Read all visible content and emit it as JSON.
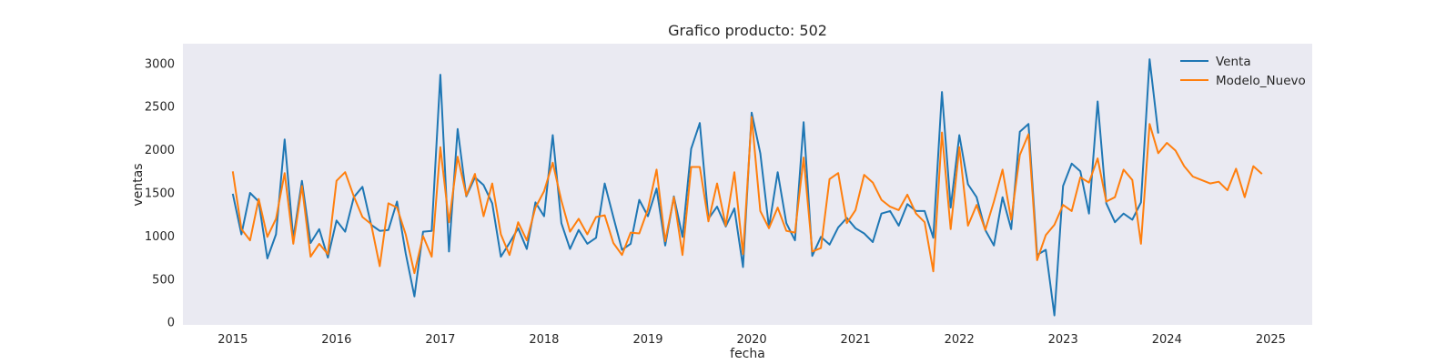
{
  "chart_data": {
    "type": "line",
    "title": "Grafico producto: 502",
    "xlabel": "fecha",
    "ylabel": "ventas",
    "xlim": [
      2014.52,
      2025.4
    ],
    "ylim": [
      -30,
      3230
    ],
    "xticks": [
      2015,
      2016,
      2017,
      2018,
      2019,
      2020,
      2021,
      2022,
      2023,
      2024,
      2025
    ],
    "xtick_labels": [
      "2015",
      "2016",
      "2017",
      "2018",
      "2019",
      "2020",
      "2021",
      "2022",
      "2023",
      "2024",
      "2025"
    ],
    "yticks": [
      0,
      500,
      1000,
      1500,
      2000,
      2500,
      3000
    ],
    "ytick_labels": [
      "0",
      "500",
      "1000",
      "1500",
      "2000",
      "2500",
      "3000"
    ],
    "grid": false,
    "background": "#eaeaf2",
    "legend_position": "top-right",
    "x_start": 2015.0,
    "x_step": 0.08333,
    "series": [
      {
        "name": "Venta",
        "color": "#1f77b4",
        "values": [
          1490,
          1020,
          1500,
          1400,
          740,
          1020,
          2120,
          970,
          1640,
          920,
          1080,
          750,
          1180,
          1050,
          1450,
          1570,
          1130,
          1060,
          1070,
          1400,
          800,
          300,
          1050,
          1060,
          2870,
          820,
          2240,
          1460,
          1680,
          1590,
          1380,
          760,
          920,
          1090,
          850,
          1390,
          1230,
          2170,
          1150,
          850,
          1070,
          910,
          980,
          1610,
          1220,
          840,
          910,
          1420,
          1230,
          1550,
          890,
          1460,
          990,
          2010,
          2310,
          1200,
          1340,
          1110,
          1320,
          640,
          2430,
          1960,
          1100,
          1740,
          1150,
          950,
          2320,
          770,
          990,
          900,
          1100,
          1210,
          1090,
          1030,
          930,
          1260,
          1290,
          1120,
          1370,
          1290,
          1290,
          980,
          2670,
          1330,
          2170,
          1600,
          1450,
          1070,
          890,
          1450,
          1080,
          2210,
          2300,
          780,
          840,
          80,
          1580,
          1840,
          1750,
          1260,
          2560,
          1380,
          1160,
          1260,
          1190,
          1390,
          3050,
          2190
        ]
      },
      {
        "name": "Modelo_Nuevo",
        "color": "#ff7f0e",
        "values": [
          1750,
          1080,
          950,
          1430,
          990,
          1200,
          1730,
          910,
          1580,
          760,
          910,
          790,
          1640,
          1740,
          1460,
          1220,
          1140,
          650,
          1380,
          1330,
          1020,
          570,
          1000,
          760,
          2030,
          1160,
          1920,
          1470,
          1720,
          1230,
          1610,
          1020,
          780,
          1160,
          950,
          1330,
          1520,
          1850,
          1410,
          1050,
          1200,
          1020,
          1220,
          1240,
          920,
          780,
          1040,
          1030,
          1310,
          1770,
          940,
          1450,
          780,
          1800,
          1800,
          1170,
          1610,
          1120,
          1740,
          790,
          2380,
          1290,
          1090,
          1330,
          1060,
          1040,
          1910,
          820,
          860,
          1660,
          1730,
          1150,
          1300,
          1710,
          1620,
          1420,
          1340,
          1300,
          1480,
          1260,
          1160,
          590,
          2200,
          1080,
          2030,
          1120,
          1360,
          1070,
          1400,
          1770,
          1190,
          1940,
          2180,
          720,
          1010,
          1130,
          1360,
          1290,
          1680,
          1620,
          1900,
          1400,
          1450,
          1770,
          1650,
          910,
          2300,
          1960,
          2080,
          1990,
          1810,
          1690,
          1650,
          1610,
          1630,
          1530,
          1780,
          1450,
          1810,
          1720
        ]
      }
    ]
  }
}
